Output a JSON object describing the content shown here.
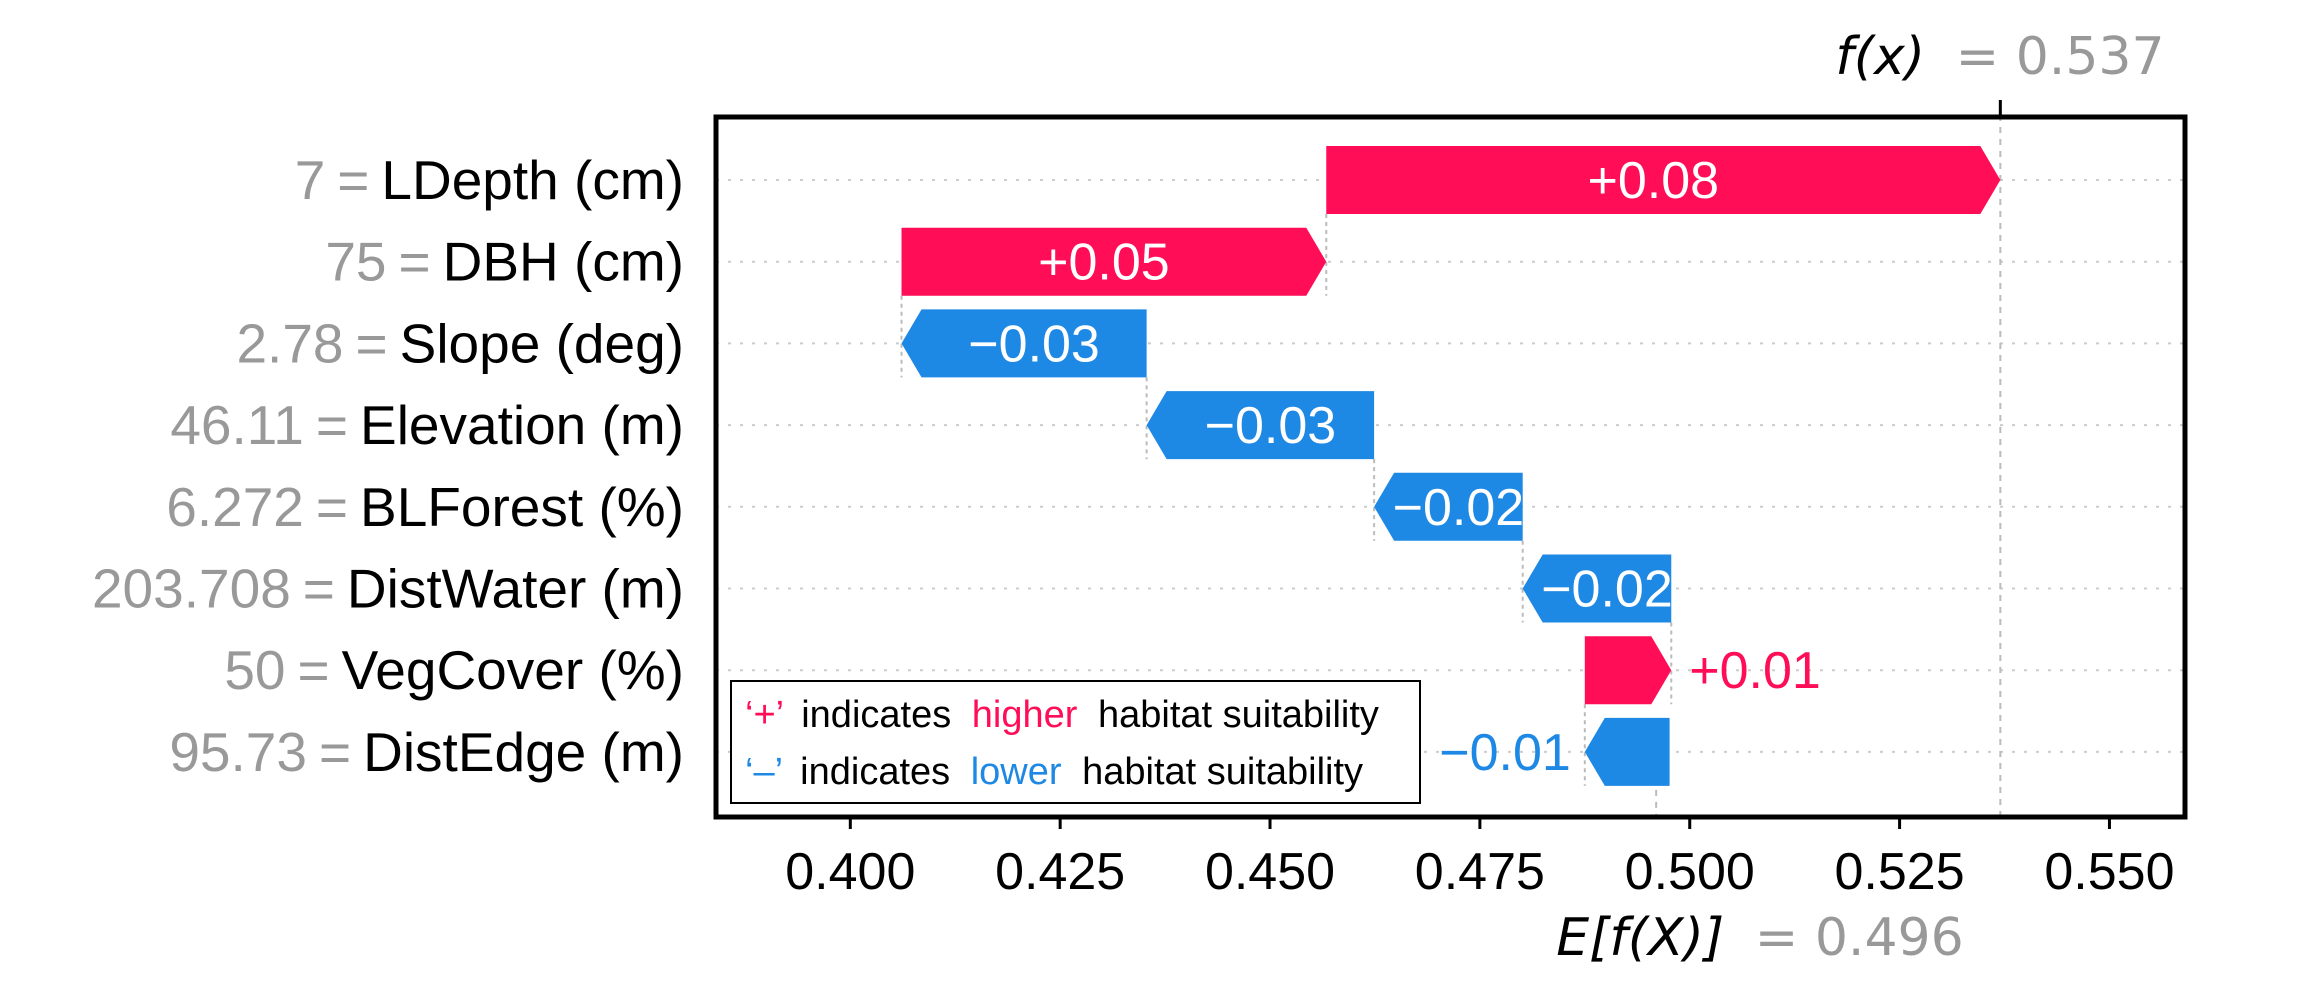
{
  "chart_data": {
    "type": "waterfall",
    "xlim": [
      0.384,
      0.559
    ],
    "xticks": [
      "0.400",
      "0.425",
      "0.450",
      "0.475",
      "0.500",
      "0.525",
      "0.550"
    ],
    "xtick_values": [
      0.4,
      0.425,
      0.45,
      0.475,
      0.5,
      0.525,
      0.55
    ],
    "base_value": 0.496,
    "output_value": 0.537,
    "base_label": {
      "func": "E[f(X)]",
      "eq": "= 0.496"
    },
    "output_label": {
      "func": "f(x)",
      "eq": "= 0.537"
    },
    "features": [
      {
        "value_text": "7",
        "name": "LDepth (cm)",
        "start": 0.4567,
        "end": 0.537,
        "label": "+0.08",
        "sign": "+",
        "label_inside": true
      },
      {
        "value_text": "75",
        "name": "DBH (cm)",
        "start": 0.4061,
        "end": 0.4567,
        "label": "+0.05",
        "sign": "+",
        "label_inside": true
      },
      {
        "value_text": "2.78",
        "name": "Slope (deg)",
        "start": 0.4353,
        "end": 0.4061,
        "label": "−0.03",
        "sign": "-",
        "label_inside": true
      },
      {
        "value_text": "46.11",
        "name": "Elevation (m)",
        "start": 0.4624,
        "end": 0.4353,
        "label": "−0.03",
        "sign": "-",
        "label_inside": true
      },
      {
        "value_text": "6.272",
        "name": "BLForest (%)",
        "start": 0.4801,
        "end": 0.4624,
        "label": "−0.02",
        "sign": "-",
        "label_inside": true
      },
      {
        "value_text": "203.708",
        "name": "DistWater (m)",
        "start": 0.4978,
        "end": 0.4801,
        "label": "−0.02",
        "sign": "-",
        "label_inside": true
      },
      {
        "value_text": "50",
        "name": "VegCover (%)",
        "start": 0.4875,
        "end": 0.4978,
        "label": "+0.01",
        "sign": "+",
        "label_inside": false
      },
      {
        "value_text": "95.73",
        "name": "DistEdge (m)",
        "start": 0.4976,
        "end": 0.4875,
        "label": "−0.01",
        "sign": "-",
        "label_inside": false
      }
    ],
    "colors": {
      "positive": "#ff0d57",
      "negative": "#1e88e5",
      "value_text": "#999999"
    },
    "legend": {
      "placement": "bottom-left",
      "lines": [
        {
          "symbol": "‘+’",
          "pre": "indicates",
          "word": "higher",
          "post": "habitat suitability",
          "color": "#ff0d57"
        },
        {
          "symbol": "‘–’",
          "pre": "indicates",
          "word": "lower",
          "post": "habitat suitability",
          "color": "#1e88e5"
        }
      ]
    }
  }
}
